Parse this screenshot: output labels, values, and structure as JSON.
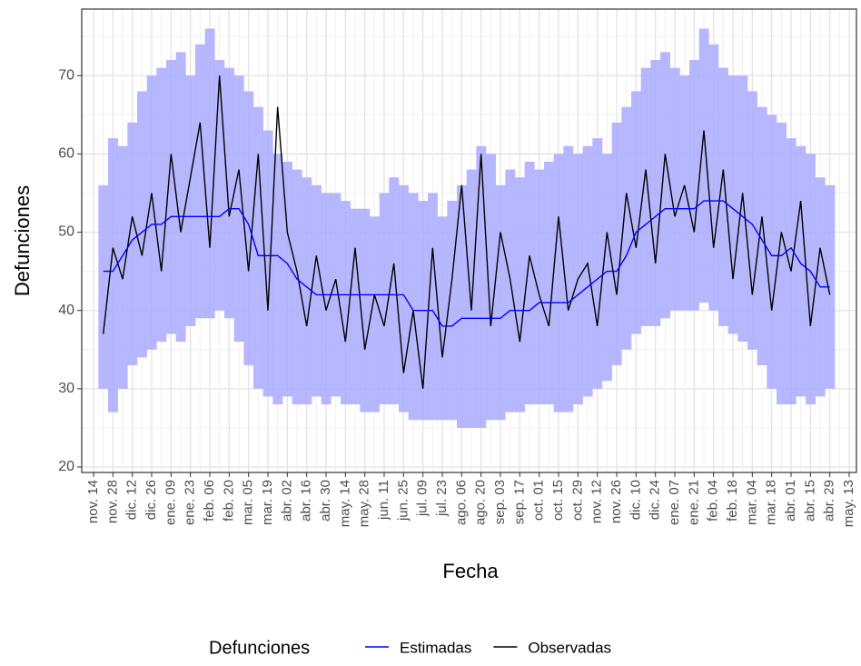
{
  "chart_data": {
    "type": "line",
    "x_label": "Fecha",
    "y_label": "Defunciones",
    "legend_title": "Defunciones",
    "legend_position": "bottom",
    "grid": true,
    "categories": [
      "nov. 14",
      null,
      "nov. 28",
      null,
      "dic. 12",
      null,
      "dic. 26",
      null,
      "ene. 09",
      null,
      "ene. 23",
      null,
      "feb. 06",
      null,
      "feb. 20",
      null,
      "mar. 05",
      null,
      "mar. 19",
      null,
      "abr. 02",
      null,
      "abr. 16",
      null,
      "abr. 30",
      null,
      "may. 14",
      null,
      "may. 28",
      null,
      "jun. 11",
      null,
      "jun. 25",
      null,
      "jul. 09",
      null,
      "jul. 23",
      null,
      "ago. 06",
      null,
      "ago. 20",
      null,
      "sep. 03",
      null,
      "sep. 17",
      null,
      "oct. 01",
      null,
      "oct. 15",
      null,
      "oct. 29",
      null,
      "nov. 12",
      null,
      "nov. 26",
      null,
      "dic. 10",
      null,
      "dic. 24",
      null,
      "ene. 07",
      null,
      "ene. 21",
      null,
      "feb. 04",
      null,
      "feb. 18",
      null,
      "mar. 04",
      null,
      "mar. 18",
      null,
      "abr. 01",
      null,
      "abr. 15",
      null,
      "abr. 29",
      null,
      "may. 13"
    ],
    "ylim": [
      19.3,
      78.5
    ],
    "yticks": [
      20,
      30,
      40,
      50,
      60,
      70
    ],
    "band": {
      "color": "#aaaaff",
      "lower": [
        null,
        30,
        27,
        30,
        33,
        34,
        35,
        36,
        37,
        36,
        38,
        39,
        39,
        40,
        39,
        36,
        33,
        30,
        29,
        28,
        29,
        28,
        28,
        29,
        28,
        29,
        28,
        28,
        27,
        27,
        28,
        28,
        27,
        26,
        26,
        26,
        26,
        26,
        25,
        25,
        25,
        26,
        26,
        27,
        27,
        28,
        28,
        28,
        27,
        27,
        28,
        29,
        30,
        31,
        33,
        35,
        37,
        38,
        38,
        39,
        40,
        40,
        40,
        41,
        40,
        38,
        37,
        36,
        35,
        33,
        30,
        28,
        28,
        29,
        28,
        29,
        30,
        null,
        null
      ],
      "upper": [
        null,
        56,
        62,
        61,
        64,
        68,
        70,
        71,
        72,
        73,
        70,
        74,
        76,
        72,
        71,
        70,
        68,
        66,
        63,
        60,
        59,
        58,
        57,
        56,
        55,
        55,
        54,
        53,
        53,
        52,
        55,
        57,
        56,
        55,
        54,
        55,
        52,
        54,
        56,
        58,
        61,
        60,
        56,
        58,
        57,
        59,
        58,
        59,
        60,
        61,
        60,
        61,
        62,
        60,
        64,
        66,
        68,
        71,
        72,
        73,
        71,
        70,
        72,
        76,
        74,
        71,
        70,
        70,
        68,
        66,
        65,
        64,
        62,
        61,
        60,
        57,
        56,
        null,
        null
      ]
    },
    "series": [
      {
        "name": "Estimadas",
        "color": "#0000ff",
        "values": [
          null,
          45,
          45,
          47,
          49,
          50,
          51,
          51,
          52,
          52,
          52,
          52,
          52,
          52,
          53,
          53,
          51,
          47,
          47,
          47,
          46,
          44,
          43,
          42,
          42,
          42,
          42,
          42,
          42,
          42,
          42,
          42,
          42,
          40,
          40,
          40,
          38,
          38,
          39,
          39,
          39,
          39,
          39,
          40,
          40,
          40,
          41,
          41,
          41,
          41,
          42,
          43,
          44,
          45,
          45,
          47,
          50,
          51,
          52,
          53,
          53,
          53,
          53,
          54,
          54,
          54,
          53,
          52,
          51,
          49,
          47,
          47,
          48,
          46,
          45,
          43,
          43,
          null,
          null
        ]
      },
      {
        "name": "Observadas",
        "color": "#000000",
        "values": [
          null,
          37,
          48,
          44,
          52,
          47,
          55,
          45,
          60,
          50,
          57,
          64,
          48,
          70,
          52,
          58,
          45,
          60,
          40,
          66,
          50,
          45,
          38,
          47,
          40,
          44,
          36,
          48,
          35,
          42,
          38,
          46,
          32,
          40,
          30,
          48,
          34,
          44,
          56,
          40,
          60,
          38,
          50,
          44,
          36,
          47,
          42,
          38,
          52,
          40,
          44,
          46,
          38,
          50,
          42,
          55,
          48,
          58,
          46,
          60,
          52,
          56,
          50,
          63,
          48,
          58,
          44,
          55,
          42,
          52,
          40,
          50,
          45,
          54,
          38,
          48,
          42,
          null,
          null
        ]
      }
    ]
  }
}
